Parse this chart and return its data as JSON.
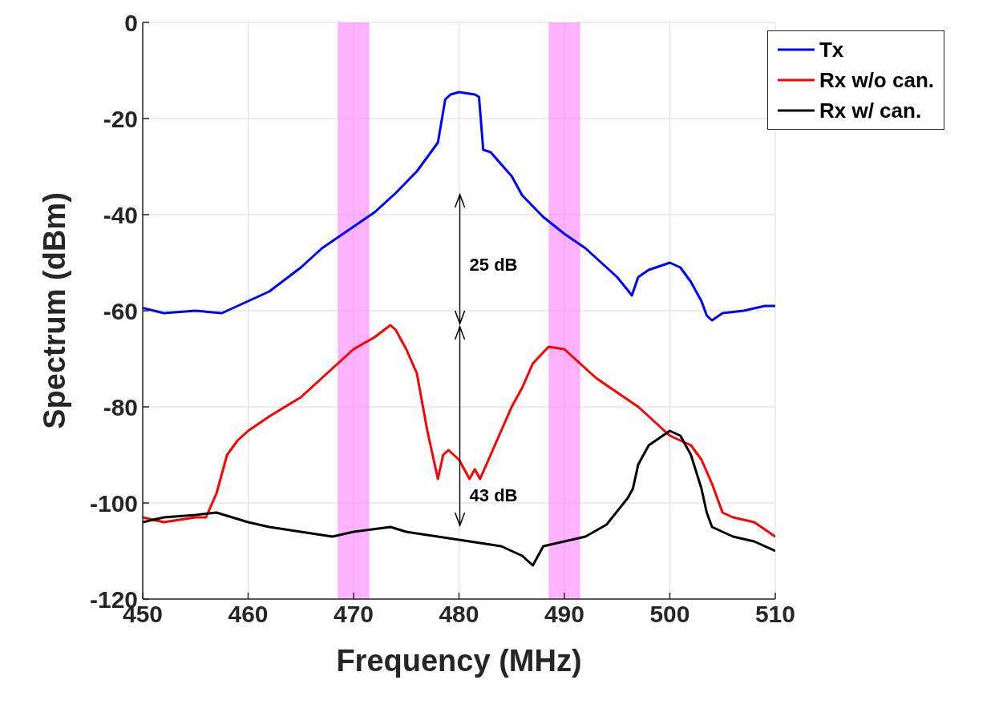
{
  "chart_data": {
    "type": "line",
    "xlabel": "Frequency (MHz)",
    "ylabel": "Spectrum (dBm)",
    "xlim": [
      450,
      510
    ],
    "xticks": [
      450,
      460,
      470,
      480,
      490,
      500,
      510
    ],
    "ylim": [
      -120,
      0
    ],
    "yticks": [
      -120,
      -100,
      -80,
      -60,
      -40,
      -20,
      0
    ],
    "grid": true,
    "legend": "top right",
    "marker": "none",
    "line_style": "solid",
    "series": [
      {
        "name": "Tx",
        "color": "#0000ff",
        "x": [
          450,
          452,
          455,
          457.5,
          460,
          462,
          465,
          467,
          470,
          472,
          474,
          476,
          477,
          478,
          478.7,
          479.2,
          480,
          481.5,
          481.9,
          482.3,
          483,
          485,
          486,
          488,
          490,
          492,
          494,
          495,
          496.4,
          497,
          498,
          500,
          501,
          502,
          503,
          503.5,
          504,
          505,
          507,
          509,
          510
        ],
        "values": [
          -59.4,
          -60.5,
          -60,
          -60.5,
          -58,
          -56,
          -51,
          -47,
          -42.5,
          -39.5,
          -35.5,
          -31,
          -28,
          -25,
          -16,
          -15,
          -14.5,
          -15,
          -15.5,
          -26.5,
          -27,
          -32,
          -36,
          -40.5,
          -44,
          -47,
          -51,
          -53,
          -56.8,
          -53,
          -51.5,
          -50,
          -51,
          -54,
          -58,
          -61,
          -62,
          -60.5,
          -60,
          -59,
          -59
        ]
      },
      {
        "name": "Rx w/o can.",
        "color": "#ff0000",
        "x": [
          450,
          452,
          455,
          456,
          457,
          458,
          459,
          460,
          462,
          465,
          467,
          468.5,
          470,
          472,
          473.5,
          474,
          475,
          476,
          477,
          478,
          478.5,
          479,
          480,
          481,
          481.5,
          482,
          483,
          484,
          485,
          486,
          487,
          488.5,
          490,
          491.5,
          493,
          495,
          497,
          499,
          500,
          502,
          503,
          504,
          505,
          506,
          508,
          510
        ],
        "values": [
          -103,
          -104,
          -103,
          -103,
          -98,
          -90,
          -87,
          -85,
          -82,
          -78,
          -74,
          -71,
          -68,
          -65.5,
          -63,
          -64,
          -68,
          -73,
          -85,
          -95,
          -90,
          -89,
          -91,
          -95,
          -93,
          -95,
          -90,
          -85,
          -80,
          -76,
          -71,
          -67.5,
          -68,
          -71,
          -74,
          -77,
          -80,
          -84,
          -86,
          -88,
          -91,
          -96,
          -102,
          -103,
          -104,
          -107
        ]
      },
      {
        "name": "Rx w/ can.",
        "color": "#000000",
        "x": [
          450,
          452,
          455,
          457,
          460,
          462,
          465,
          468,
          470,
          473.5,
          475,
          478,
          481,
          484,
          486,
          487,
          488,
          490,
          492,
          494,
          496,
          496.5,
          497,
          498,
          500,
          501,
          502,
          503,
          503.5,
          504,
          506,
          508,
          510
        ],
        "values": [
          -104,
          -103,
          -102.5,
          -102,
          -104,
          -105,
          -106,
          -107,
          -106,
          -105,
          -106,
          -107,
          -108,
          -109,
          -111,
          -113,
          -109,
          -108,
          -107,
          -104.5,
          -99,
          -97,
          -92,
          -88,
          -85,
          -86,
          -90,
          -97,
          -102,
          -105,
          -107,
          -108,
          -110
        ]
      }
    ],
    "bands": [
      {
        "axis": "x",
        "from": 468.5,
        "to": 471.5,
        "color": "#ff80ff"
      },
      {
        "axis": "x",
        "from": 488.5,
        "to": 491.5,
        "color": "#ff80ff"
      }
    ],
    "annotations": [
      "25 dB",
      "43 dB"
    ]
  }
}
